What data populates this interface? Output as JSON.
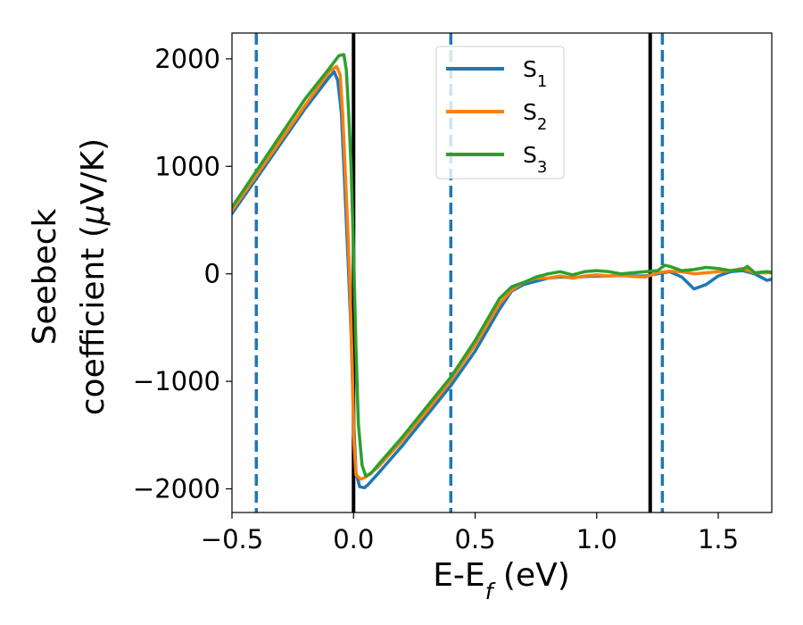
{
  "chart_data": {
    "type": "line",
    "xlabel": "E-E",
    "xlabel_subscript": "f",
    "xlabel_unit": " (eV)",
    "ylabel_line1": "Seebeck",
    "ylabel_line2": "coefficient  (",
    "ylabel_mu": "μ",
    "ylabel_unit": "V/K)",
    "xlim": [
      -0.5,
      1.72
    ],
    "ylim": [
      -2220,
      2240
    ],
    "xticks": [
      -0.5,
      0.0,
      0.5,
      1.0,
      1.5
    ],
    "xtick_labels": [
      "−0.5",
      "0.0",
      "0.5",
      "1.0",
      "1.5"
    ],
    "yticks": [
      -2000,
      -1000,
      0,
      1000,
      2000
    ],
    "ytick_labels": [
      "−2000",
      "−1000",
      "0",
      "1000",
      "2000"
    ],
    "grid": false,
    "legend_placement": "top-center",
    "series": [
      {
        "name": "S",
        "subscript": "1",
        "color": "#1f77b4",
        "points": [
          [
            -0.5,
            560
          ],
          [
            -0.4,
            885
          ],
          [
            -0.3,
            1210
          ],
          [
            -0.2,
            1535
          ],
          [
            -0.1,
            1830
          ],
          [
            -0.08,
            1880
          ],
          [
            -0.065,
            1800
          ],
          [
            -0.05,
            1500
          ],
          [
            -0.04,
            1000
          ],
          [
            -0.03,
            500
          ],
          [
            -0.02,
            0
          ],
          [
            -0.01,
            -550
          ],
          [
            0.0,
            -1350
          ],
          [
            0.01,
            -1850
          ],
          [
            0.025,
            -1980
          ],
          [
            0.045,
            -1990
          ],
          [
            0.06,
            -1960
          ],
          [
            0.1,
            -1860
          ],
          [
            0.2,
            -1600
          ],
          [
            0.3,
            -1320
          ],
          [
            0.4,
            -1040
          ],
          [
            0.5,
            -720
          ],
          [
            0.6,
            -330
          ],
          [
            0.65,
            -160
          ],
          [
            0.7,
            -100
          ],
          [
            0.75,
            -70
          ],
          [
            0.8,
            -40
          ],
          [
            0.85,
            -30
          ],
          [
            0.9,
            -35
          ],
          [
            0.95,
            -25
          ],
          [
            1.0,
            -20
          ],
          [
            1.05,
            -20
          ],
          [
            1.1,
            -15
          ],
          [
            1.15,
            -20
          ],
          [
            1.2,
            -20
          ],
          [
            1.25,
            0
          ],
          [
            1.3,
            20
          ],
          [
            1.35,
            -30
          ],
          [
            1.4,
            -140
          ],
          [
            1.45,
            -100
          ],
          [
            1.5,
            -20
          ],
          [
            1.55,
            20
          ],
          [
            1.6,
            30
          ],
          [
            1.65,
            0
          ],
          [
            1.7,
            -60
          ],
          [
            1.72,
            -50
          ]
        ]
      },
      {
        "name": "S",
        "subscript": "2",
        "color": "#ff7f0e",
        "points": [
          [
            -0.5,
            590
          ],
          [
            -0.4,
            915
          ],
          [
            -0.3,
            1240
          ],
          [
            -0.2,
            1565
          ],
          [
            -0.1,
            1880
          ],
          [
            -0.07,
            1930
          ],
          [
            -0.055,
            1850
          ],
          [
            -0.045,
            1500
          ],
          [
            -0.035,
            1000
          ],
          [
            -0.025,
            500
          ],
          [
            -0.015,
            -100
          ],
          [
            -0.005,
            -900
          ],
          [
            0.0,
            -1500
          ],
          [
            0.01,
            -1870
          ],
          [
            0.03,
            -1910
          ],
          [
            0.05,
            -1890
          ],
          [
            0.1,
            -1800
          ],
          [
            0.2,
            -1550
          ],
          [
            0.3,
            -1280
          ],
          [
            0.4,
            -990
          ],
          [
            0.5,
            -660
          ],
          [
            0.6,
            -280
          ],
          [
            0.65,
            -150
          ],
          [
            0.7,
            -80
          ],
          [
            0.75,
            -40
          ],
          [
            0.8,
            -40
          ],
          [
            0.85,
            -20
          ],
          [
            0.9,
            -40
          ],
          [
            0.95,
            -20
          ],
          [
            1.0,
            -10
          ],
          [
            1.05,
            -20
          ],
          [
            1.1,
            -15
          ],
          [
            1.15,
            -25
          ],
          [
            1.2,
            -30
          ],
          [
            1.25,
            10
          ],
          [
            1.3,
            25
          ],
          [
            1.35,
            20
          ],
          [
            1.4,
            0
          ],
          [
            1.45,
            10
          ],
          [
            1.5,
            20
          ],
          [
            1.55,
            30
          ],
          [
            1.6,
            50
          ],
          [
            1.65,
            10
          ],
          [
            1.7,
            10
          ],
          [
            1.72,
            10
          ]
        ]
      },
      {
        "name": "S",
        "subscript": "3",
        "color": "#2ca02c",
        "points": [
          [
            -0.5,
            620
          ],
          [
            -0.4,
            955
          ],
          [
            -0.3,
            1290
          ],
          [
            -0.2,
            1625
          ],
          [
            -0.1,
            1910
          ],
          [
            -0.06,
            2030
          ],
          [
            -0.04,
            2040
          ],
          [
            -0.03,
            1900
          ],
          [
            -0.02,
            1500
          ],
          [
            -0.01,
            1000
          ],
          [
            0.0,
            200
          ],
          [
            0.01,
            -700
          ],
          [
            0.02,
            -1400
          ],
          [
            0.035,
            -1780
          ],
          [
            0.05,
            -1880
          ],
          [
            0.07,
            -1860
          ],
          [
            0.1,
            -1780
          ],
          [
            0.2,
            -1520
          ],
          [
            0.3,
            -1240
          ],
          [
            0.4,
            -960
          ],
          [
            0.5,
            -620
          ],
          [
            0.6,
            -230
          ],
          [
            0.65,
            -120
          ],
          [
            0.7,
            -80
          ],
          [
            0.75,
            -30
          ],
          [
            0.8,
            0
          ],
          [
            0.85,
            20
          ],
          [
            0.9,
            -10
          ],
          [
            0.95,
            20
          ],
          [
            1.0,
            30
          ],
          [
            1.05,
            20
          ],
          [
            1.1,
            0
          ],
          [
            1.15,
            10
          ],
          [
            1.2,
            20
          ],
          [
            1.25,
            30
          ],
          [
            1.28,
            80
          ],
          [
            1.3,
            70
          ],
          [
            1.35,
            30
          ],
          [
            1.4,
            40
          ],
          [
            1.45,
            60
          ],
          [
            1.5,
            50
          ],
          [
            1.55,
            30
          ],
          [
            1.6,
            40
          ],
          [
            1.62,
            70
          ],
          [
            1.65,
            10
          ],
          [
            1.7,
            20
          ],
          [
            1.72,
            15
          ]
        ]
      }
    ],
    "vertical_lines": [
      {
        "x": -0.4,
        "style": "dashed",
        "color": "#1f77b4"
      },
      {
        "x": 0.0,
        "style": "solid",
        "color": "#000000"
      },
      {
        "x": 0.4,
        "style": "dashed",
        "color": "#1f77b4"
      },
      {
        "x": 1.22,
        "style": "solid",
        "color": "#000000"
      },
      {
        "x": 1.27,
        "style": "dashed",
        "color": "#1f77b4"
      }
    ]
  }
}
